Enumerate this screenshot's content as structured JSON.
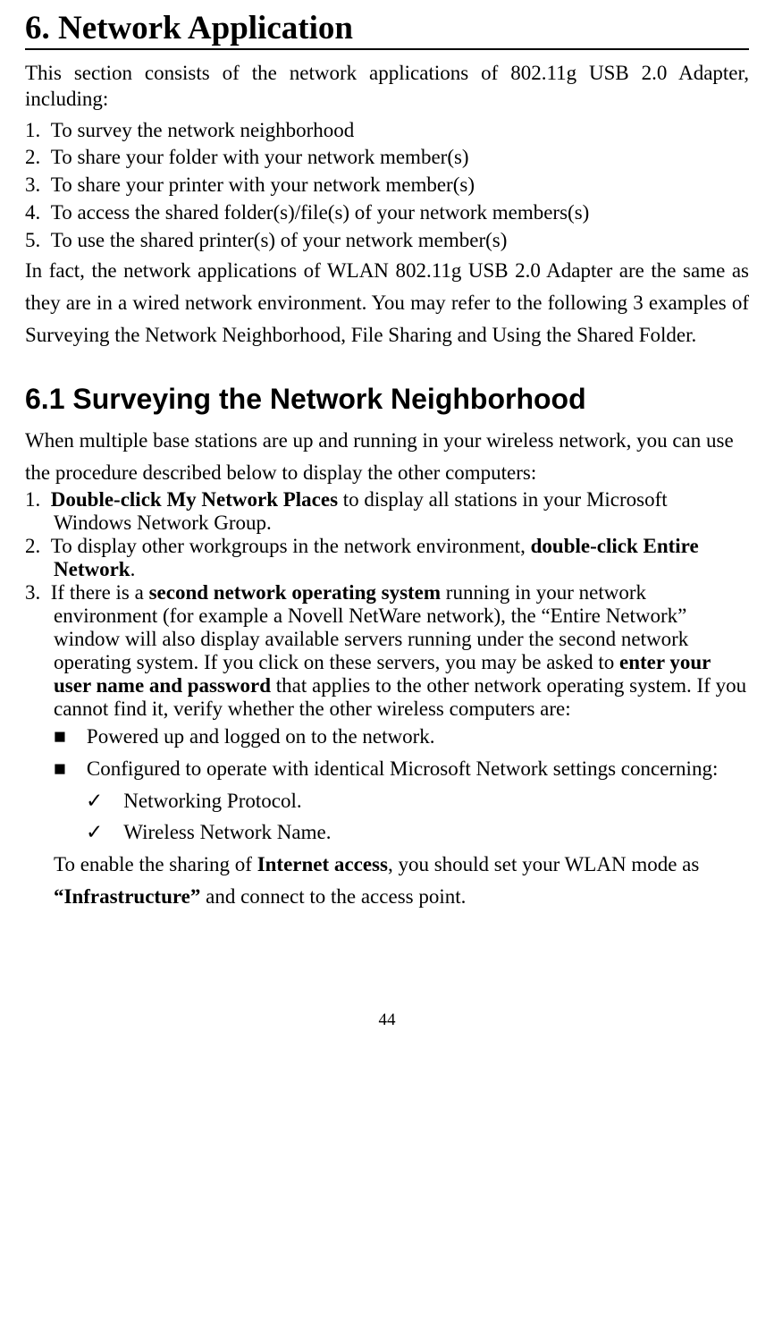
{
  "heading": "6. Network Application",
  "intro": "This section consists of the network applications of 802.11g USB 2.0 Adapter, including:",
  "topList": [
    "To survey the network neighborhood",
    "To share your folder with your network member(s)",
    "To share your printer with your network member(s)",
    "To access the shared folder(s)/file(s) of your network members(s)",
    "To use the shared printer(s) of your network member(s)"
  ],
  "bodyText": "In fact, the network applications of WLAN 802.11g USB 2.0 Adapter are the same as they are in a wired network environment.  You may refer to the following 3 examples of Surveying the Network Neighborhood, File Sharing and Using the Shared Folder.",
  "subHeading": "6.1 Surveying the Network Neighborhood",
  "subIntro": "When multiple base stations are up and running in your wireless network, you can use the procedure described below to display the other computers:",
  "step1": {
    "num": "1.",
    "bold": "Double-click My Network Places",
    "rest": " to display all stations in your Microsoft Windows Network Group."
  },
  "step2": {
    "num": "2.",
    "pre": "To display other workgroups in the network environment, ",
    "bold": "double-click Entire Network",
    "post": "."
  },
  "step3": {
    "num": "3.",
    "pre": "If there is a ",
    "bold1": "second network operating system",
    "mid1": " running in your network environment (for example a Novell NetWare network), the “Entire Network” window will also display available servers running under the second network operating system. If you click on these servers, you may be asked to ",
    "bold2": "enter your user name and password",
    "post": " that applies to the other network operating system. If you cannot find it, verify whether the other wireless computers are:"
  },
  "bullets": [
    "Powered up and logged on to the network.",
    "Configured to operate with identical Microsoft Network settings concerning:"
  ],
  "checks": [
    "Networking Protocol.",
    "Wireless Network Name."
  ],
  "closing": {
    "pre": "To enable the sharing of ",
    "bold1": "Internet access",
    "mid": ", you should set your WLAN mode as ",
    "bold2": "“Infrastructure”",
    "post": " and connect to the access point."
  },
  "pageNum": "44",
  "bulletGlyph": "■",
  "checkGlyph": "✓"
}
